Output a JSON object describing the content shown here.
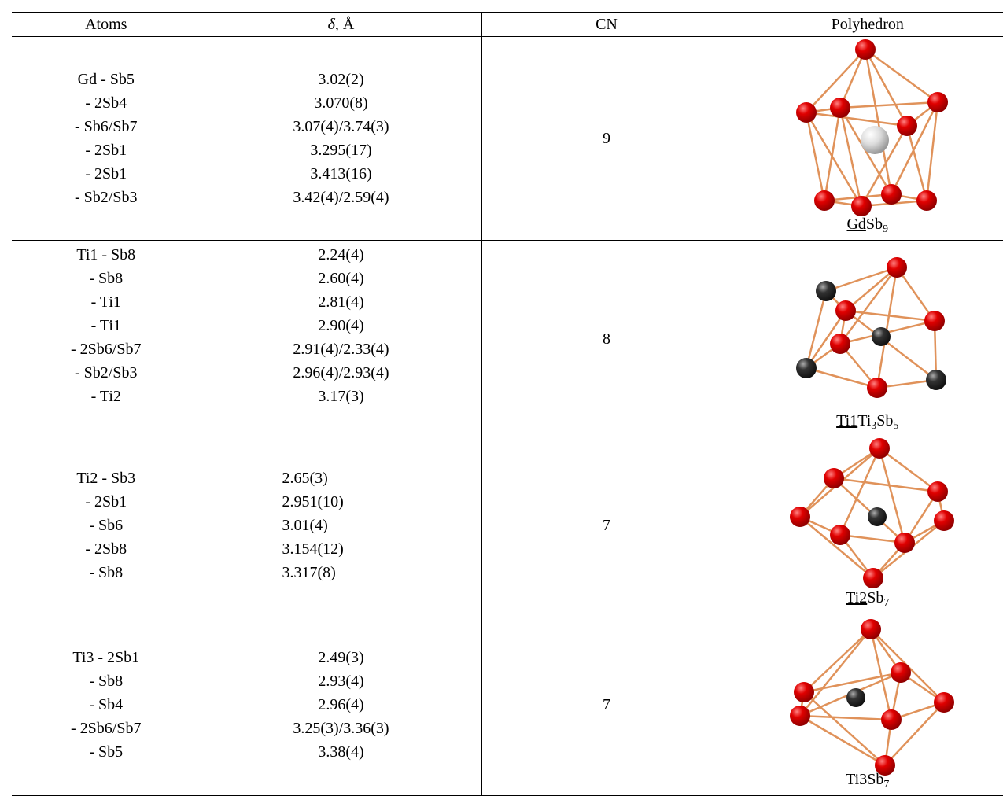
{
  "table": {
    "header": [
      "Atoms",
      {
        "symbol": "δ",
        "rest": ", Å"
      },
      "CN",
      "Polyhedron"
    ],
    "rows": [
      {
        "atoms": [
          "Gd - Sb5",
          "- 2Sb4",
          "- Sb6/Sb7",
          "- 2Sb1",
          "- 2Sb1",
          "- Sb2/Sb3"
        ],
        "distances": [
          "3.02(2)",
          "3.070(8)",
          "3.07(4)/3.74(3)",
          "3.295(17)",
          "3.413(16)",
          "3.42(4)/2.59(4)"
        ],
        "cn": 9,
        "polyhedron": [
          {
            "text": "Gd",
            "style": "underline"
          },
          {
            "text": "Sb"
          },
          {
            "text": "9",
            "style": "sub"
          }
        ]
      },
      {
        "atoms": [
          "Ti1 - Sb8",
          "- Sb8",
          "- Ti1",
          "- Ti1",
          "- 2Sb6/Sb7",
          "- Sb2/Sb3",
          "- Ti2"
        ],
        "distances": [
          "2.24(4)",
          "2.60(4)",
          "2.81(4)",
          "2.90(4)",
          "2.91(4)/2.33(4)",
          "2.96(4)/2.93(4)",
          "3.17(3)"
        ],
        "cn": 8,
        "polyhedron": [
          {
            "text": "Ti1",
            "style": "underline"
          },
          {
            "text": "Ti"
          },
          {
            "text": "3",
            "style": "sub"
          },
          {
            "text": "Sb"
          },
          {
            "text": "5",
            "style": "sub"
          }
        ]
      },
      {
        "atoms": [
          "Ti2 - Sb3",
          "- 2Sb1",
          "- Sb6",
          "- 2Sb8",
          "- Sb8"
        ],
        "distances": [
          "2.65(3)",
          "2.951(10)",
          "3.01(4)",
          "3.154(12)",
          "3.317(8)"
        ],
        "cn": 7,
        "polyhedron": [
          {
            "text": "Ti2",
            "style": "underline"
          },
          {
            "text": "Sb"
          },
          {
            "text": "7",
            "style": "sub"
          }
        ]
      },
      {
        "atoms": [
          "Ti3 - 2Sb1",
          "- Sb8",
          "- Sb4",
          "- 2Sb6/Sb7",
          "- Sb5"
        ],
        "distances": [
          "2.49(3)",
          "2.93(4)",
          "2.96(4)",
          "3.25(3)/3.36(3)",
          "3.38(4)"
        ],
        "cn": 7,
        "polyhedron": [
          {
            "text": "Ti3"
          },
          {
            "text": "Sb"
          },
          {
            "text": "7",
            "style": "sub"
          }
        ]
      }
    ]
  }
}
